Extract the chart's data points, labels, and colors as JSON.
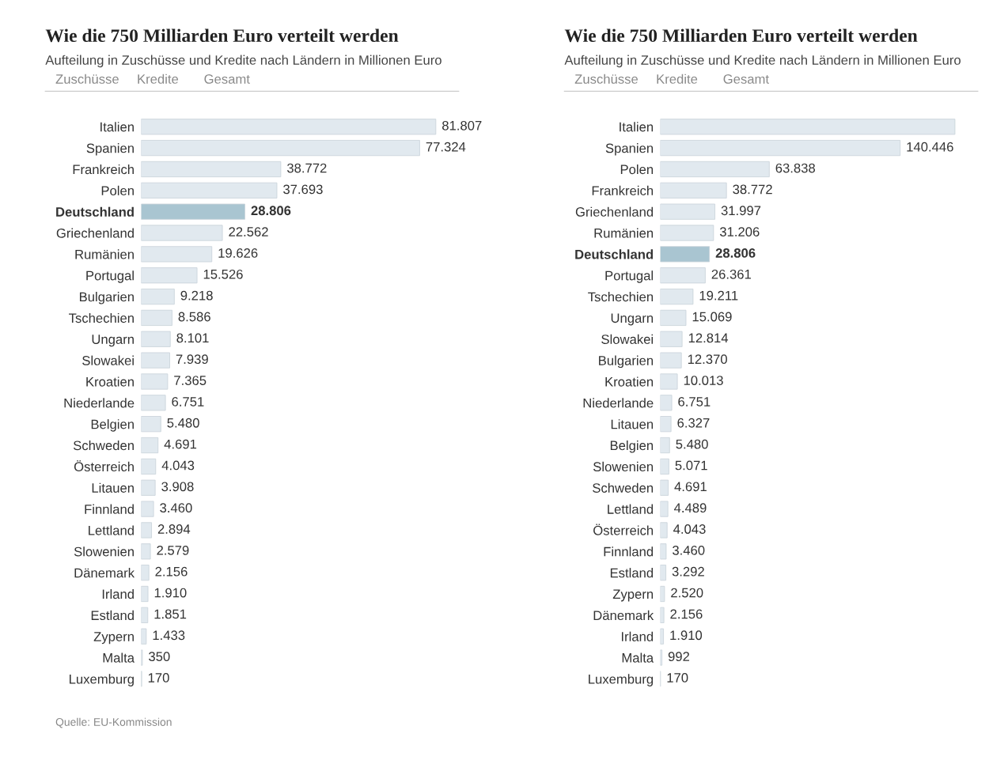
{
  "chart_data": [
    {
      "type": "bar",
      "orientation": "horizontal",
      "title": "Wie die 750 Milliarden Euro verteilt werden",
      "subtitle": "Aufteilung in Zuschüsse und Kredite nach Ländern in Millionen Euro",
      "annotations": [
        "Zuschüsse",
        "Kredite",
        "Gesamt",
        "Quelle: EU-Kommission"
      ],
      "categories": [
        "Italien",
        "Spanien",
        "Frankreich",
        "Polen",
        "Deutschland",
        "Griechenland",
        "Rumänien",
        "Portugal",
        "Bulgarien",
        "Tschechien",
        "Ungarn",
        "Slowakei",
        "Kroatien",
        "Niederlande",
        "Belgien",
        "Schweden",
        "Österreich",
        "Litauen",
        "Finnland",
        "Lettland",
        "Slowenien",
        "Dänemark",
        "Irland",
        "Estland",
        "Zypern",
        "Malta",
        "Luxemburg"
      ],
      "values": [
        81807,
        77324,
        38772,
        37693,
        28806,
        22562,
        19626,
        15526,
        9218,
        8586,
        8101,
        7939,
        7365,
        6751,
        5480,
        4691,
        4043,
        3908,
        3460,
        2894,
        2579,
        2156,
        1910,
        1851,
        1433,
        350,
        170
      ],
      "value_labels": [
        "81.807",
        "77.324",
        "38.772",
        "37.693",
        "28.806",
        "22.562",
        "19.626",
        "15.526",
        "9.218",
        "8.586",
        "8.101",
        "7.939",
        "7.365",
        "6.751",
        "5.480",
        "4.691",
        "4.043",
        "3.908",
        "3.460",
        "2.894",
        "2.579",
        "2.156",
        "1.910",
        "1.851",
        "1.433",
        "350",
        "170"
      ],
      "colors": [
        "#e1e9ef",
        "#e1e9ef",
        "#e1e9ef",
        "#e1e9ef",
        "#a9c5d1",
        "#e1e9ef",
        "#e1e9ef",
        "#e1e9ef",
        "#e1e9ef",
        "#e1e9ef",
        "#e1e9ef",
        "#e1e9ef",
        "#e1e9ef",
        "#e1e9ef",
        "#e1e9ef",
        "#e1e9ef",
        "#e1e9ef",
        "#e1e9ef",
        "#e1e9ef",
        "#e1e9ef",
        "#e1e9ef",
        "#e1e9ef",
        "#e1e9ef",
        "#e1e9ef",
        "#e1e9ef",
        "#e1e9ef",
        "#e1e9ef"
      ],
      "tick_labels": "y",
      "grid": false,
      "legend": false
    },
    {
      "type": "bar",
      "orientation": "horizontal",
      "title": "Wie die 750 Milliarden Euro verteilt werden",
      "subtitle": "Aufteilung in Zuschüsse und Kredite nach Ländern in Millionen Euro",
      "annotations": [
        "Zuschüsse",
        "Kredite",
        "Gesamt"
      ],
      "categories": [
        "Italien",
        "Spanien",
        "Polen",
        "Frankreich",
        "Griechenland",
        "Rumänien",
        "Deutschland",
        "Portugal",
        "Tschechien",
        "Ungarn",
        "Slowakei",
        "Bulgarien",
        "Kroatien",
        "Niederlande",
        "Litauen",
        "Belgien",
        "Slowenien",
        "Schweden",
        "Lettland",
        "Österreich",
        "Finnland",
        "Estland",
        "Zypern",
        "Dänemark",
        "Irland",
        "Malta",
        "Luxemburg"
      ],
      "values": [
        172500,
        140446,
        63838,
        38772,
        31997,
        31206,
        28806,
        26361,
        19211,
        15069,
        12814,
        12370,
        10013,
        6751,
        6327,
        5480,
        5071,
        4691,
        4489,
        4043,
        3460,
        3292,
        2520,
        2156,
        1910,
        992,
        170
      ],
      "value_labels": [
        null,
        "140.446",
        "63.838",
        "38.772",
        "31.997",
        "31.206",
        "28.806",
        "26.361",
        "19.211",
        "15.069",
        "12.814",
        "12.370",
        "10.013",
        "6.751",
        "6.327",
        "5.480",
        "5.071",
        "4.691",
        "4.489",
        "4.043",
        "3.460",
        "3.292",
        "2.520",
        "2.156",
        "1.910",
        "992",
        "170"
      ],
      "colors": [
        "#e1e9ef",
        "#e1e9ef",
        "#e1e9ef",
        "#e1e9ef",
        "#e1e9ef",
        "#e1e9ef",
        "#a9c5d1",
        "#e1e9ef",
        "#e1e9ef",
        "#e1e9ef",
        "#e1e9ef",
        "#e1e9ef",
        "#e1e9ef",
        "#e1e9ef",
        "#e1e9ef",
        "#e1e9ef",
        "#e1e9ef",
        "#e1e9ef",
        "#e1e9ef",
        "#e1e9ef",
        "#e1e9ef",
        "#e1e9ef",
        "#e1e9ef",
        "#e1e9ef",
        "#e1e9ef",
        "#e1e9ef",
        "#e1e9ef"
      ],
      "tick_labels": "y",
      "grid": false,
      "legend": false
    }
  ]
}
